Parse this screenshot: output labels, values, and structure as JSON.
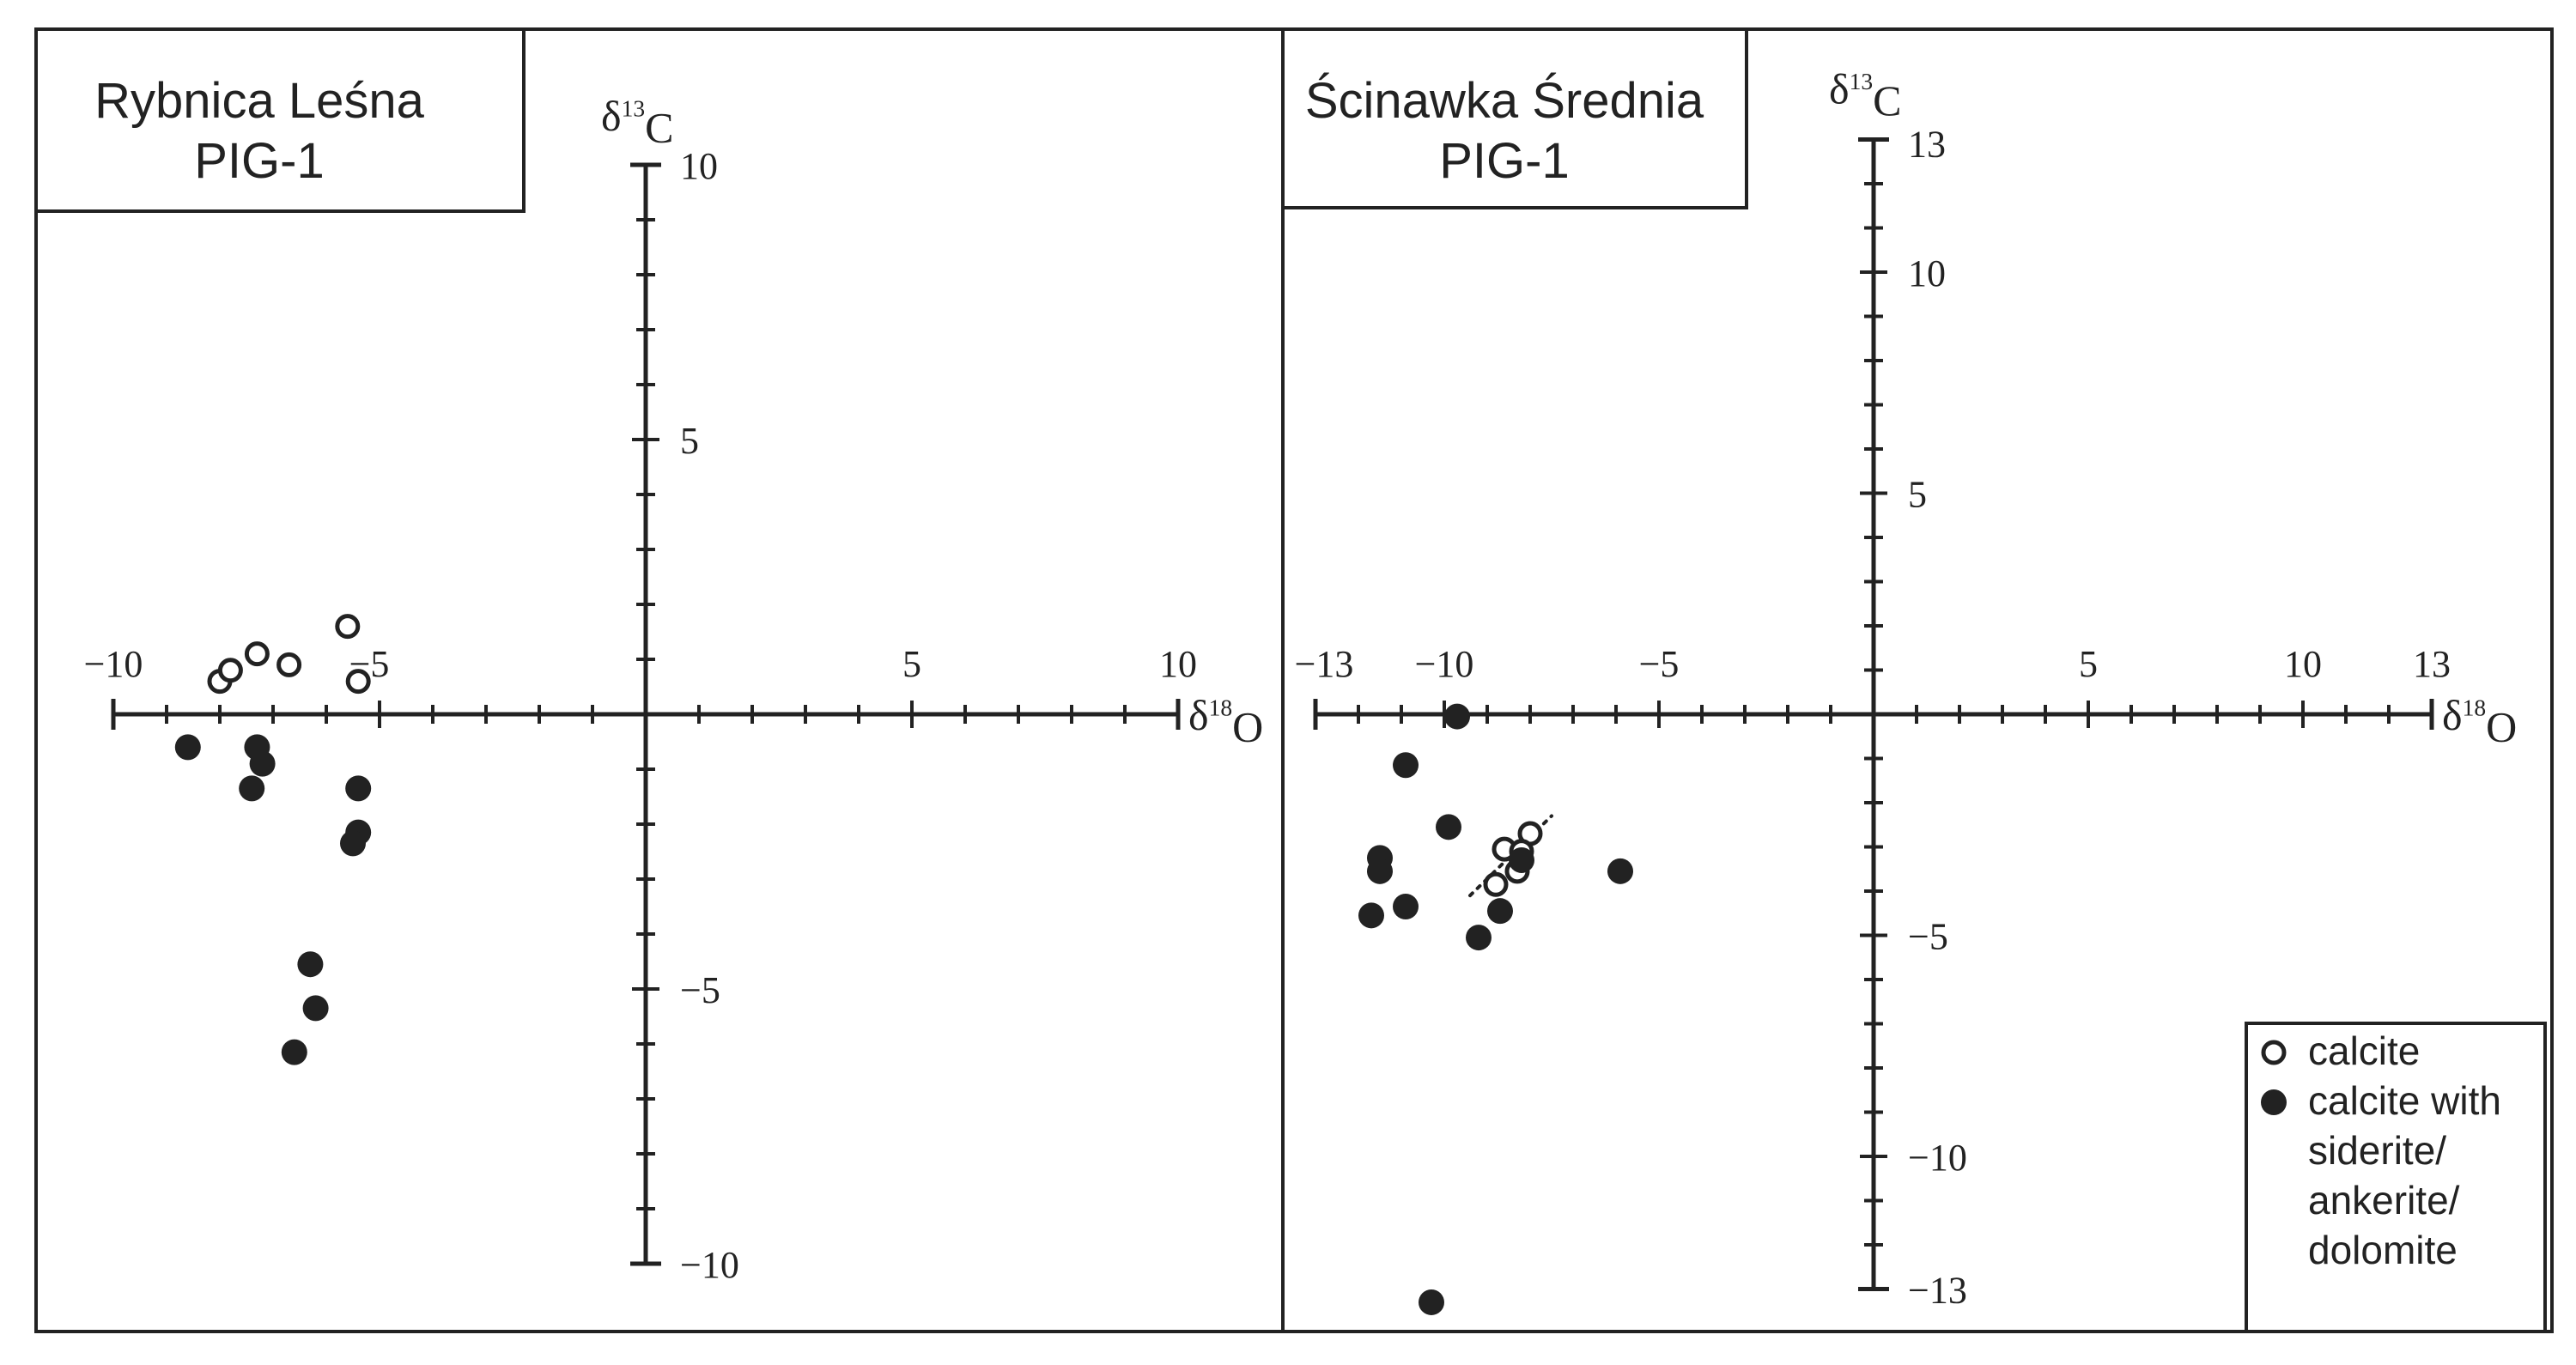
{
  "chart_data": [
    {
      "type": "scatter",
      "title": "Rybnica Leśna\nPIG-1",
      "title_lines": [
        "Rybnica Leśna",
        "PIG-1"
      ],
      "xlabel": "δ18O",
      "ylabel": "δ13C",
      "xlim": [
        -10,
        10
      ],
      "ylim": [
        -10,
        10
      ],
      "x_tick_labels": [
        {
          "value": -10,
          "label": "−10"
        },
        {
          "value": -5,
          "label": "−5"
        },
        {
          "value": 5,
          "label": "5"
        },
        {
          "value": 10,
          "label": "10"
        }
      ],
      "y_tick_labels": [
        {
          "value": 10,
          "label": "10"
        },
        {
          "value": 5,
          "label": "5"
        },
        {
          "value": -5,
          "label": "−5"
        },
        {
          "value": -10,
          "label": "−10"
        }
      ],
      "series": [
        {
          "name": "calcite",
          "marker": "open-circle",
          "points": [
            {
              "x": -8.0,
              "y": 0.6
            },
            {
              "x": -7.8,
              "y": 0.8
            },
            {
              "x": -7.3,
              "y": 1.1
            },
            {
              "x": -6.7,
              "y": 0.9
            },
            {
              "x": -5.6,
              "y": 1.6
            },
            {
              "x": -5.4,
              "y": 0.6
            }
          ]
        },
        {
          "name": "calcite with siderite/ankerite/dolomite",
          "marker": "filled-circle",
          "points": [
            {
              "x": -8.6,
              "y": -0.6
            },
            {
              "x": -7.3,
              "y": -0.6
            },
            {
              "x": -7.2,
              "y": -0.9
            },
            {
              "x": -7.4,
              "y": -1.35
            },
            {
              "x": -5.4,
              "y": -1.35
            },
            {
              "x": -5.4,
              "y": -2.15
            },
            {
              "x": -5.5,
              "y": -2.35
            },
            {
              "x": -6.3,
              "y": -4.55
            },
            {
              "x": -6.2,
              "y": -5.35
            },
            {
              "x": -6.6,
              "y": -6.15
            }
          ]
        }
      ]
    },
    {
      "type": "scatter",
      "title": "Ścinawka Średnia\nPIG-1",
      "title_lines": [
        "Ścinawka Średnia",
        "PIG-1"
      ],
      "xlabel": "δ18O",
      "ylabel": "δ13C",
      "xlim": [
        -13,
        13
      ],
      "ylim": [
        -13,
        13
      ],
      "x_tick_labels": [
        {
          "value": -13,
          "label": "−13"
        },
        {
          "value": -10,
          "label": "−10"
        },
        {
          "value": -5,
          "label": "−5"
        },
        {
          "value": 5,
          "label": "5"
        },
        {
          "value": 10,
          "label": "10"
        },
        {
          "value": 13,
          "label": "13"
        }
      ],
      "y_tick_labels": [
        {
          "value": 13,
          "label": "13"
        },
        {
          "value": 10,
          "label": "10"
        },
        {
          "value": 5,
          "label": "5"
        },
        {
          "value": -5,
          "label": "−5"
        },
        {
          "value": -10,
          "label": "−10"
        },
        {
          "value": -13,
          "label": "−13"
        }
      ],
      "trend_line": {
        "from": {
          "x": -9.4,
          "y": -4.1
        },
        "to": {
          "x": -7.5,
          "y": -2.3
        }
      },
      "series": [
        {
          "name": "calcite",
          "marker": "open-circle",
          "points": [
            {
              "x": -8.0,
              "y": -2.7
            },
            {
              "x": -8.6,
              "y": -3.05
            },
            {
              "x": -8.2,
              "y": -3.1
            },
            {
              "x": -8.3,
              "y": -3.55
            },
            {
              "x": -8.8,
              "y": -3.85
            }
          ]
        },
        {
          "name": "calcite with siderite/ankerite/dolomite",
          "marker": "filled-circle",
          "points": [
            {
              "x": -9.7,
              "y": -0.05
            },
            {
              "x": -10.9,
              "y": -1.15
            },
            {
              "x": -9.9,
              "y": -2.55
            },
            {
              "x": -11.5,
              "y": -3.25
            },
            {
              "x": -11.5,
              "y": -3.55
            },
            {
              "x": -8.2,
              "y": -3.3
            },
            {
              "x": -5.9,
              "y": -3.55
            },
            {
              "x": -10.9,
              "y": -4.35
            },
            {
              "x": -11.7,
              "y": -4.55
            },
            {
              "x": -8.7,
              "y": -4.45
            },
            {
              "x": -9.2,
              "y": -5.05
            },
            {
              "x": -10.3,
              "y": -13.3
            }
          ]
        }
      ]
    }
  ],
  "legend": {
    "items": [
      {
        "marker": "open-circle",
        "lines": [
          "calcite"
        ]
      },
      {
        "marker": "filled-circle",
        "lines": [
          "calcite with",
          "siderite/",
          "ankerite/",
          "dolomite"
        ]
      }
    ]
  }
}
